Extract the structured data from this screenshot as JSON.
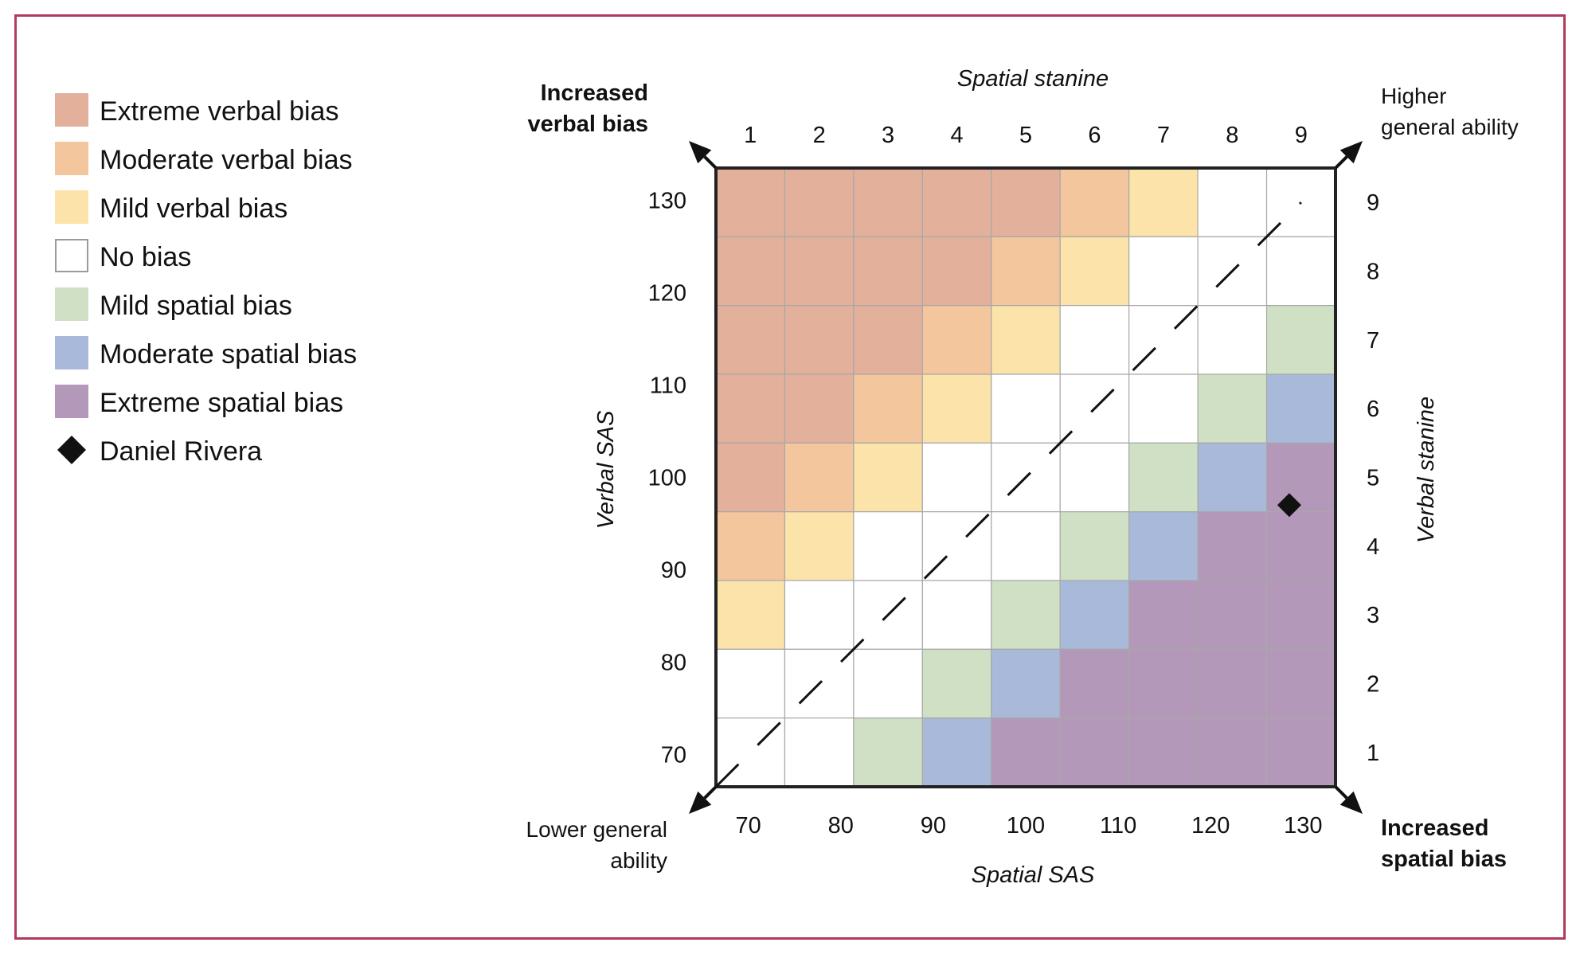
{
  "chart_data": {
    "type": "heatmap",
    "xlabel": "Spatial SAS",
    "ylabel": "Verbal SAS",
    "top_axis_label": "Spatial stanine",
    "right_axis_label": "Verbal stanine",
    "x_ticks": [
      "70",
      "80",
      "90",
      "100",
      "110",
      "120",
      "130"
    ],
    "y_ticks": [
      "70",
      "80",
      "90",
      "100",
      "110",
      "120",
      "130"
    ],
    "x_stanine_ticks": [
      "1",
      "2",
      "3",
      "4",
      "5",
      "6",
      "7",
      "8",
      "9"
    ],
    "y_stanine_ticks": [
      "1",
      "2",
      "3",
      "4",
      "5",
      "6",
      "7",
      "8",
      "9"
    ],
    "xlim": [
      66.5,
      133.5
    ],
    "ylim": [
      66.5,
      133.5
    ],
    "corner_labels": {
      "top_left": [
        "Increased",
        "verbal bias"
      ],
      "top_right": [
        "Higher",
        "general ability"
      ],
      "bottom_left": [
        "Lower general",
        "ability"
      ],
      "bottom_right": [
        "Increased",
        "spatial bias"
      ]
    },
    "categories": [
      {
        "name": "Extreme verbal bias",
        "code": -3,
        "color": "#e2b09b"
      },
      {
        "name": "Moderate verbal bias",
        "code": -2,
        "color": "#f4c69e"
      },
      {
        "name": "Mild verbal bias",
        "code": -1,
        "color": "#fbe3a9"
      },
      {
        "name": "No bias",
        "code": 0,
        "color": "#ffffff"
      },
      {
        "name": "Mild spatial bias",
        "code": 1,
        "color": "#cfe0c4"
      },
      {
        "name": "Moderate spatial bias",
        "code": 2,
        "color": "#a9b9da"
      },
      {
        "name": "Extreme spatial bias",
        "code": 3,
        "color": "#b398b9"
      }
    ],
    "grid_rows_top_to_bottom": [
      [
        -3,
        -3,
        -3,
        -3,
        -3,
        -2,
        -1,
        0,
        0
      ],
      [
        -3,
        -3,
        -3,
        -3,
        -2,
        -1,
        0,
        0,
        0
      ],
      [
        -3,
        -3,
        -3,
        -2,
        -1,
        0,
        0,
        0,
        1
      ],
      [
        -3,
        -3,
        -2,
        -1,
        0,
        0,
        0,
        1,
        2
      ],
      [
        -3,
        -2,
        -1,
        0,
        0,
        0,
        1,
        2,
        3
      ],
      [
        -2,
        -1,
        0,
        0,
        0,
        1,
        2,
        3,
        3
      ],
      [
        -1,
        0,
        0,
        0,
        1,
        2,
        3,
        3,
        3
      ],
      [
        0,
        0,
        0,
        1,
        2,
        3,
        3,
        3,
        3
      ],
      [
        0,
        0,
        1,
        2,
        3,
        3,
        3,
        3,
        3
      ]
    ],
    "points": [
      {
        "name": "Daniel Rivera",
        "x": 128.5,
        "y": 97,
        "marker": "diamond",
        "color": "#111111"
      }
    ],
    "diagonal": "dashed"
  }
}
